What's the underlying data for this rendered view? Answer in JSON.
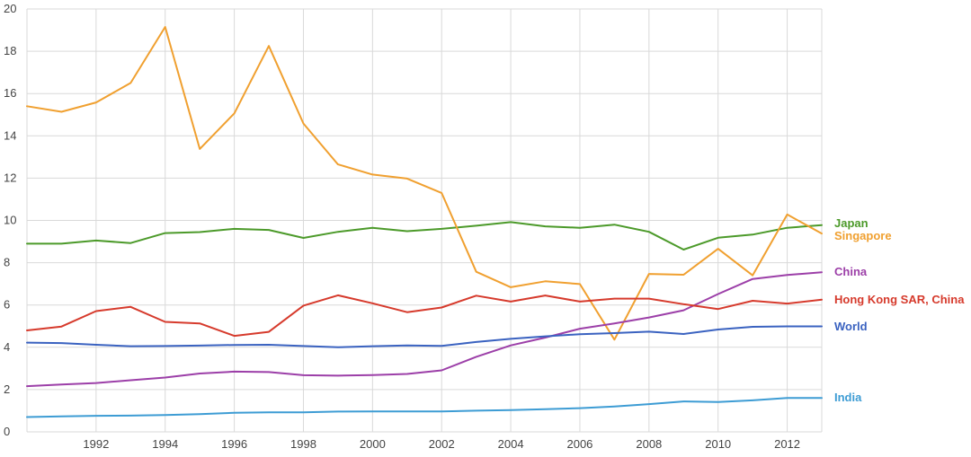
{
  "chart_data": {
    "type": "line",
    "title": "",
    "xlabel": "",
    "ylabel": "",
    "x": [
      1990,
      1991,
      1992,
      1993,
      1994,
      1995,
      1996,
      1997,
      1998,
      1999,
      2000,
      2001,
      2002,
      2003,
      2004,
      2005,
      2006,
      2007,
      2008,
      2009,
      2010,
      2011,
      2012,
      2013
    ],
    "xlim": [
      1990,
      2013
    ],
    "ylim": [
      0,
      20
    ],
    "x_ticks": [
      "1992",
      "1994",
      "1996",
      "1998",
      "2000",
      "2002",
      "2004",
      "2006",
      "2008",
      "2010",
      "2012"
    ],
    "y_ticks": [
      "0",
      "2",
      "4",
      "6",
      "8",
      "10",
      "12",
      "14",
      "16",
      "18",
      "20"
    ],
    "grid": true,
    "legend_position": "right",
    "series": [
      {
        "name": "Japan",
        "color": "#4c9a2a",
        "values": [
          8.9,
          8.9,
          9.05,
          8.93,
          9.4,
          9.45,
          9.6,
          9.55,
          9.17,
          9.46,
          9.65,
          9.49,
          9.6,
          9.75,
          9.92,
          9.72,
          9.65,
          9.8,
          9.46,
          8.62,
          9.18,
          9.33,
          9.65,
          9.78
        ]
      },
      {
        "name": "Singapore",
        "color": "#f0a030",
        "values": [
          15.4,
          15.14,
          15.58,
          16.5,
          19.15,
          13.38,
          15.06,
          18.25,
          14.58,
          12.65,
          12.17,
          11.98,
          11.3,
          7.57,
          6.84,
          7.12,
          6.99,
          4.36,
          7.47,
          7.43,
          8.66,
          7.4,
          10.28,
          9.38
        ]
      },
      {
        "name": "China",
        "color": "#9c3fa8",
        "values": [
          2.16,
          2.24,
          2.31,
          2.44,
          2.57,
          2.76,
          2.85,
          2.83,
          2.68,
          2.66,
          2.69,
          2.74,
          2.91,
          3.55,
          4.09,
          4.46,
          4.88,
          5.13,
          5.41,
          5.75,
          6.52,
          7.23,
          7.42,
          7.55
        ]
      },
      {
        "name": "Hong Kong SAR, China",
        "color": "#d63a2c",
        "values": [
          4.8,
          4.98,
          5.71,
          5.91,
          5.2,
          5.13,
          4.54,
          4.73,
          5.97,
          6.46,
          6.08,
          5.66,
          5.88,
          6.44,
          6.16,
          6.45,
          6.16,
          6.3,
          6.3,
          6.04,
          5.81,
          6.2,
          6.07,
          6.25
        ]
      },
      {
        "name": "World",
        "color": "#3a62c0",
        "values": [
          4.22,
          4.2,
          4.12,
          4.05,
          4.06,
          4.08,
          4.11,
          4.12,
          4.06,
          4.0,
          4.05,
          4.09,
          4.07,
          4.25,
          4.4,
          4.52,
          4.62,
          4.67,
          4.74,
          4.63,
          4.84,
          4.97,
          4.99,
          4.99
        ]
      },
      {
        "name": "India",
        "color": "#3d9cd4",
        "values": [
          0.7,
          0.73,
          0.76,
          0.77,
          0.8,
          0.84,
          0.9,
          0.92,
          0.92,
          0.96,
          0.97,
          0.97,
          0.97,
          1.0,
          1.03,
          1.07,
          1.12,
          1.2,
          1.31,
          1.44,
          1.41,
          1.49,
          1.6,
          1.6
        ]
      }
    ]
  }
}
